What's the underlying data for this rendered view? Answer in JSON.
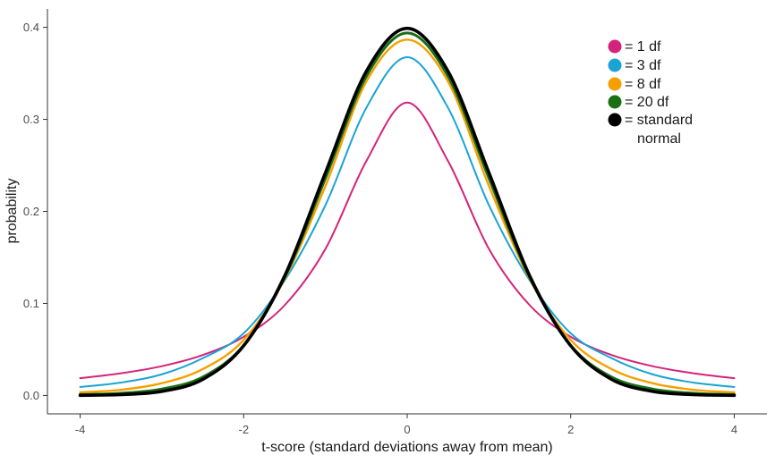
{
  "chart_data": {
    "type": "line",
    "title": "",
    "xlabel": "t-score (standard deviations away from mean)",
    "ylabel": "probability",
    "xlim": [
      -4.4,
      4.4
    ],
    "ylim": [
      -0.02,
      0.42
    ],
    "x_ticks": [
      -4,
      -2,
      0,
      2,
      4
    ],
    "x_tick_labels": [
      "-4",
      "-2",
      "0",
      "2",
      "4"
    ],
    "y_ticks": [
      0.0,
      0.1,
      0.2,
      0.3,
      0.4
    ],
    "y_tick_labels": [
      "0.0",
      "0.1",
      "0.2",
      "0.3",
      "0.4"
    ],
    "grid": false,
    "legend_position": "top-right",
    "x": [
      -4.0,
      -3.5,
      -3.0,
      -2.5,
      -2.0,
      -1.5,
      -1.0,
      -0.5,
      0.0,
      0.5,
      1.0,
      1.5,
      2.0,
      2.5,
      3.0,
      3.5,
      4.0
    ],
    "series": [
      {
        "name": "= 1 df",
        "color": "#d4237a",
        "values": [
          0.0187,
          0.0241,
          0.0318,
          0.0439,
          0.0637,
          0.0979,
          0.1592,
          0.2546,
          0.3183,
          0.2546,
          0.1592,
          0.0979,
          0.0637,
          0.0439,
          0.0318,
          0.0241,
          0.0187
        ]
      },
      {
        "name": "= 3 df",
        "color": "#1aa3d4",
        "values": [
          0.0092,
          0.014,
          0.023,
          0.0405,
          0.0675,
          0.1247,
          0.2067,
          0.3125,
          0.3676,
          0.3125,
          0.2067,
          0.1247,
          0.0675,
          0.0405,
          0.023,
          0.014,
          0.0092
        ]
      },
      {
        "name": "= 8 df",
        "color": "#f5a000",
        "values": [
          0.0033,
          0.0061,
          0.0133,
          0.0286,
          0.0603,
          0.1264,
          0.2276,
          0.341,
          0.3867,
          0.341,
          0.2276,
          0.1264,
          0.0603,
          0.0286,
          0.0133,
          0.0061,
          0.0033
        ]
      },
      {
        "name": "= 20 df",
        "color": "#1a6e14",
        "values": [
          0.001,
          0.0024,
          0.007,
          0.02,
          0.0545,
          0.1279,
          0.236,
          0.3466,
          0.3939,
          0.3466,
          0.236,
          0.1279,
          0.0545,
          0.02,
          0.007,
          0.0024,
          0.001
        ]
      },
      {
        "name": "= standard normal",
        "color": "#000000",
        "values": [
          0.0001,
          0.0009,
          0.0044,
          0.0175,
          0.054,
          0.1295,
          0.242,
          0.3521,
          0.3989,
          0.3521,
          0.242,
          0.1295,
          0.054,
          0.0175,
          0.0044,
          0.0009,
          0.0001
        ]
      }
    ]
  },
  "legend": {
    "items": [
      {
        "label": "= 1 df",
        "color": "#d4237a"
      },
      {
        "label": "= 3 df",
        "color": "#1aa3d4"
      },
      {
        "label": "= 8 df",
        "color": "#f5a000"
      },
      {
        "label": "= 20 df",
        "color": "#1a6e14"
      },
      {
        "label": "= standard",
        "label_line2": "normal",
        "color": "#000000"
      }
    ]
  }
}
